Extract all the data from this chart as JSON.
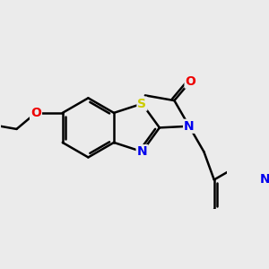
{
  "bg_color": "#ebebeb",
  "bond_color": "#000000",
  "bond_width": 1.8,
  "atom_colors": {
    "N": "#0000ee",
    "O": "#ee0000",
    "S": "#cccc00",
    "C": "#000000"
  },
  "xlim": [
    -3.8,
    3.8
  ],
  "ylim": [
    -2.8,
    2.2
  ],
  "figsize": [
    3.0,
    3.0
  ],
  "dpi": 100
}
